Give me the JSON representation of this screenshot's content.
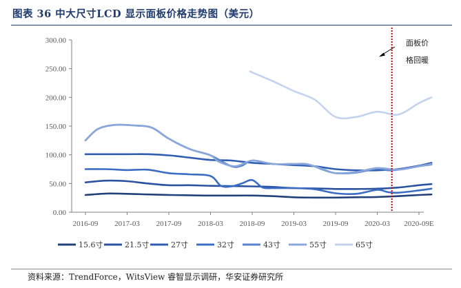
{
  "header": {
    "title": "图表 36 中大尺寸LCD 显示面板价格走势图（美元）"
  },
  "footer": {
    "source": "资料来源：TrendForce，WitsView 睿智显示调研，华安证券研究所"
  },
  "annotation": {
    "line1": "面板价",
    "line2": "格回暖"
  },
  "colors": {
    "title": "#1f3a6d",
    "axis": "#7f7f7f",
    "marker_line": "#c00000"
  },
  "chart_data": {
    "type": "line",
    "x_labels": [
      "2016-09",
      "2017-03",
      "2017-09",
      "2018-03",
      "2018-09",
      "2019-03",
      "2019-09",
      "2020-03",
      "2020-09E"
    ],
    "ylim": [
      0,
      300
    ],
    "yticks": [
      "0.00",
      "50.00",
      "100.00",
      "150.00",
      "200.00",
      "250.00",
      "300.00"
    ],
    "grid": false,
    "legend_position": "bottom",
    "vertical_marker": {
      "x": 7.35,
      "style": "dotted"
    },
    "series": [
      {
        "name": "15.6寸",
        "color": "#22407a",
        "points": [
          [
            0,
            30
          ],
          [
            0.5,
            32.5
          ],
          [
            1,
            32
          ],
          [
            1.5,
            31
          ],
          [
            2,
            30
          ],
          [
            2.5,
            29.5
          ],
          [
            3,
            29
          ],
          [
            3.5,
            29
          ],
          [
            4,
            29
          ],
          [
            4.5,
            28
          ],
          [
            5,
            26
          ],
          [
            5.5,
            25.5
          ],
          [
            6,
            25.5
          ],
          [
            6.5,
            26
          ],
          [
            7,
            26.5
          ],
          [
            7.5,
            28
          ],
          [
            8,
            30
          ],
          [
            8.3,
            31
          ]
        ]
      },
      {
        "name": "21.5寸",
        "color": "#2b52a0",
        "points": [
          [
            0,
            52
          ],
          [
            0.5,
            55
          ],
          [
            1,
            54
          ],
          [
            1.5,
            50
          ],
          [
            2,
            47
          ],
          [
            2.5,
            47
          ],
          [
            3,
            46
          ],
          [
            3.5,
            45.5
          ],
          [
            4,
            45
          ],
          [
            4.5,
            44
          ],
          [
            5,
            42
          ],
          [
            5.5,
            41.5
          ],
          [
            6,
            40.5
          ],
          [
            6.5,
            40.5
          ],
          [
            7,
            41
          ],
          [
            7.5,
            43
          ],
          [
            8,
            47
          ],
          [
            8.3,
            49
          ]
        ]
      },
      {
        "name": "27寸",
        "color": "#2e5db2",
        "points": [
          [
            0,
            101
          ],
          [
            0.5,
            101
          ],
          [
            1,
            101
          ],
          [
            1.5,
            101
          ],
          [
            2,
            99
          ],
          [
            2.5,
            95
          ],
          [
            3,
            91
          ],
          [
            3.5,
            90
          ],
          [
            4,
            86
          ],
          [
            4.5,
            84
          ],
          [
            5,
            82
          ],
          [
            5.5,
            80
          ],
          [
            6,
            75
          ],
          [
            6.5,
            73
          ],
          [
            7,
            73
          ],
          [
            7.5,
            75
          ],
          [
            8,
            81
          ],
          [
            8.3,
            86
          ]
        ]
      },
      {
        "name": "32寸",
        "color": "#3a6cc4",
        "points": [
          [
            0,
            75
          ],
          [
            0.5,
            75
          ],
          [
            1,
            73.5
          ],
          [
            1.5,
            74
          ],
          [
            2,
            68
          ],
          [
            2.5,
            66
          ],
          [
            3,
            63
          ],
          [
            3.25,
            46
          ],
          [
            3.5,
            45
          ],
          [
            3.75,
            50
          ],
          [
            4,
            56
          ],
          [
            4.25,
            43
          ],
          [
            4.5,
            42
          ],
          [
            5,
            42
          ],
          [
            5.5,
            40
          ],
          [
            6,
            33
          ],
          [
            6.5,
            32
          ],
          [
            7,
            39
          ],
          [
            7.25,
            35
          ],
          [
            7.5,
            34
          ],
          [
            8,
            38
          ],
          [
            8.3,
            41
          ]
        ]
      },
      {
        "name": "43寸",
        "color": "#5b82cc",
        "points": [
          [
            0,
            125
          ],
          [
            0.3,
            145
          ],
          [
            0.7,
            152
          ],
          [
            1.2,
            151
          ],
          [
            1.6,
            147
          ],
          [
            2,
            128
          ],
          [
            2.5,
            110
          ],
          [
            3,
            99
          ],
          [
            3.5,
            80
          ],
          [
            3.75,
            81
          ],
          [
            4,
            90
          ],
          [
            4.5,
            84
          ],
          [
            5,
            84
          ],
          [
            5.4,
            82
          ],
          [
            5.7,
            74
          ],
          [
            6,
            68
          ],
          [
            6.5,
            69
          ],
          [
            7,
            76
          ],
          [
            7.25,
            73
          ],
          [
            7.5,
            74
          ],
          [
            8,
            80
          ],
          [
            8.3,
            83
          ]
        ]
      },
      {
        "name": "55寸",
        "color": "#8aa7dc",
        "points": [
          [
            0,
            125
          ],
          [
            0.3,
            145
          ],
          [
            0.7,
            152
          ],
          [
            1.2,
            151
          ],
          [
            1.6,
            147
          ],
          [
            2,
            128
          ],
          [
            2.5,
            110
          ],
          [
            3,
            99
          ],
          [
            3.2,
            88
          ],
          [
            3.6,
            80
          ],
          [
            4,
            90
          ],
          [
            4.5,
            84
          ],
          [
            5,
            84
          ],
          [
            5.3,
            84
          ],
          [
            5.7,
            75
          ],
          [
            6,
            68
          ],
          [
            6.5,
            70
          ],
          [
            7,
            77
          ],
          [
            7.5,
            74
          ],
          [
            8,
            80
          ],
          [
            8.3,
            84
          ]
        ]
      },
      {
        "name": "65寸",
        "color": "#c3d3ee",
        "points": [
          [
            3.95,
            245
          ],
          [
            4.5,
            228
          ],
          [
            5,
            211
          ],
          [
            5.5,
            196
          ],
          [
            6,
            166
          ],
          [
            6.5,
            166
          ],
          [
            7,
            175
          ],
          [
            7.5,
            170
          ],
          [
            8,
            190
          ],
          [
            8.3,
            200
          ]
        ]
      }
    ]
  }
}
